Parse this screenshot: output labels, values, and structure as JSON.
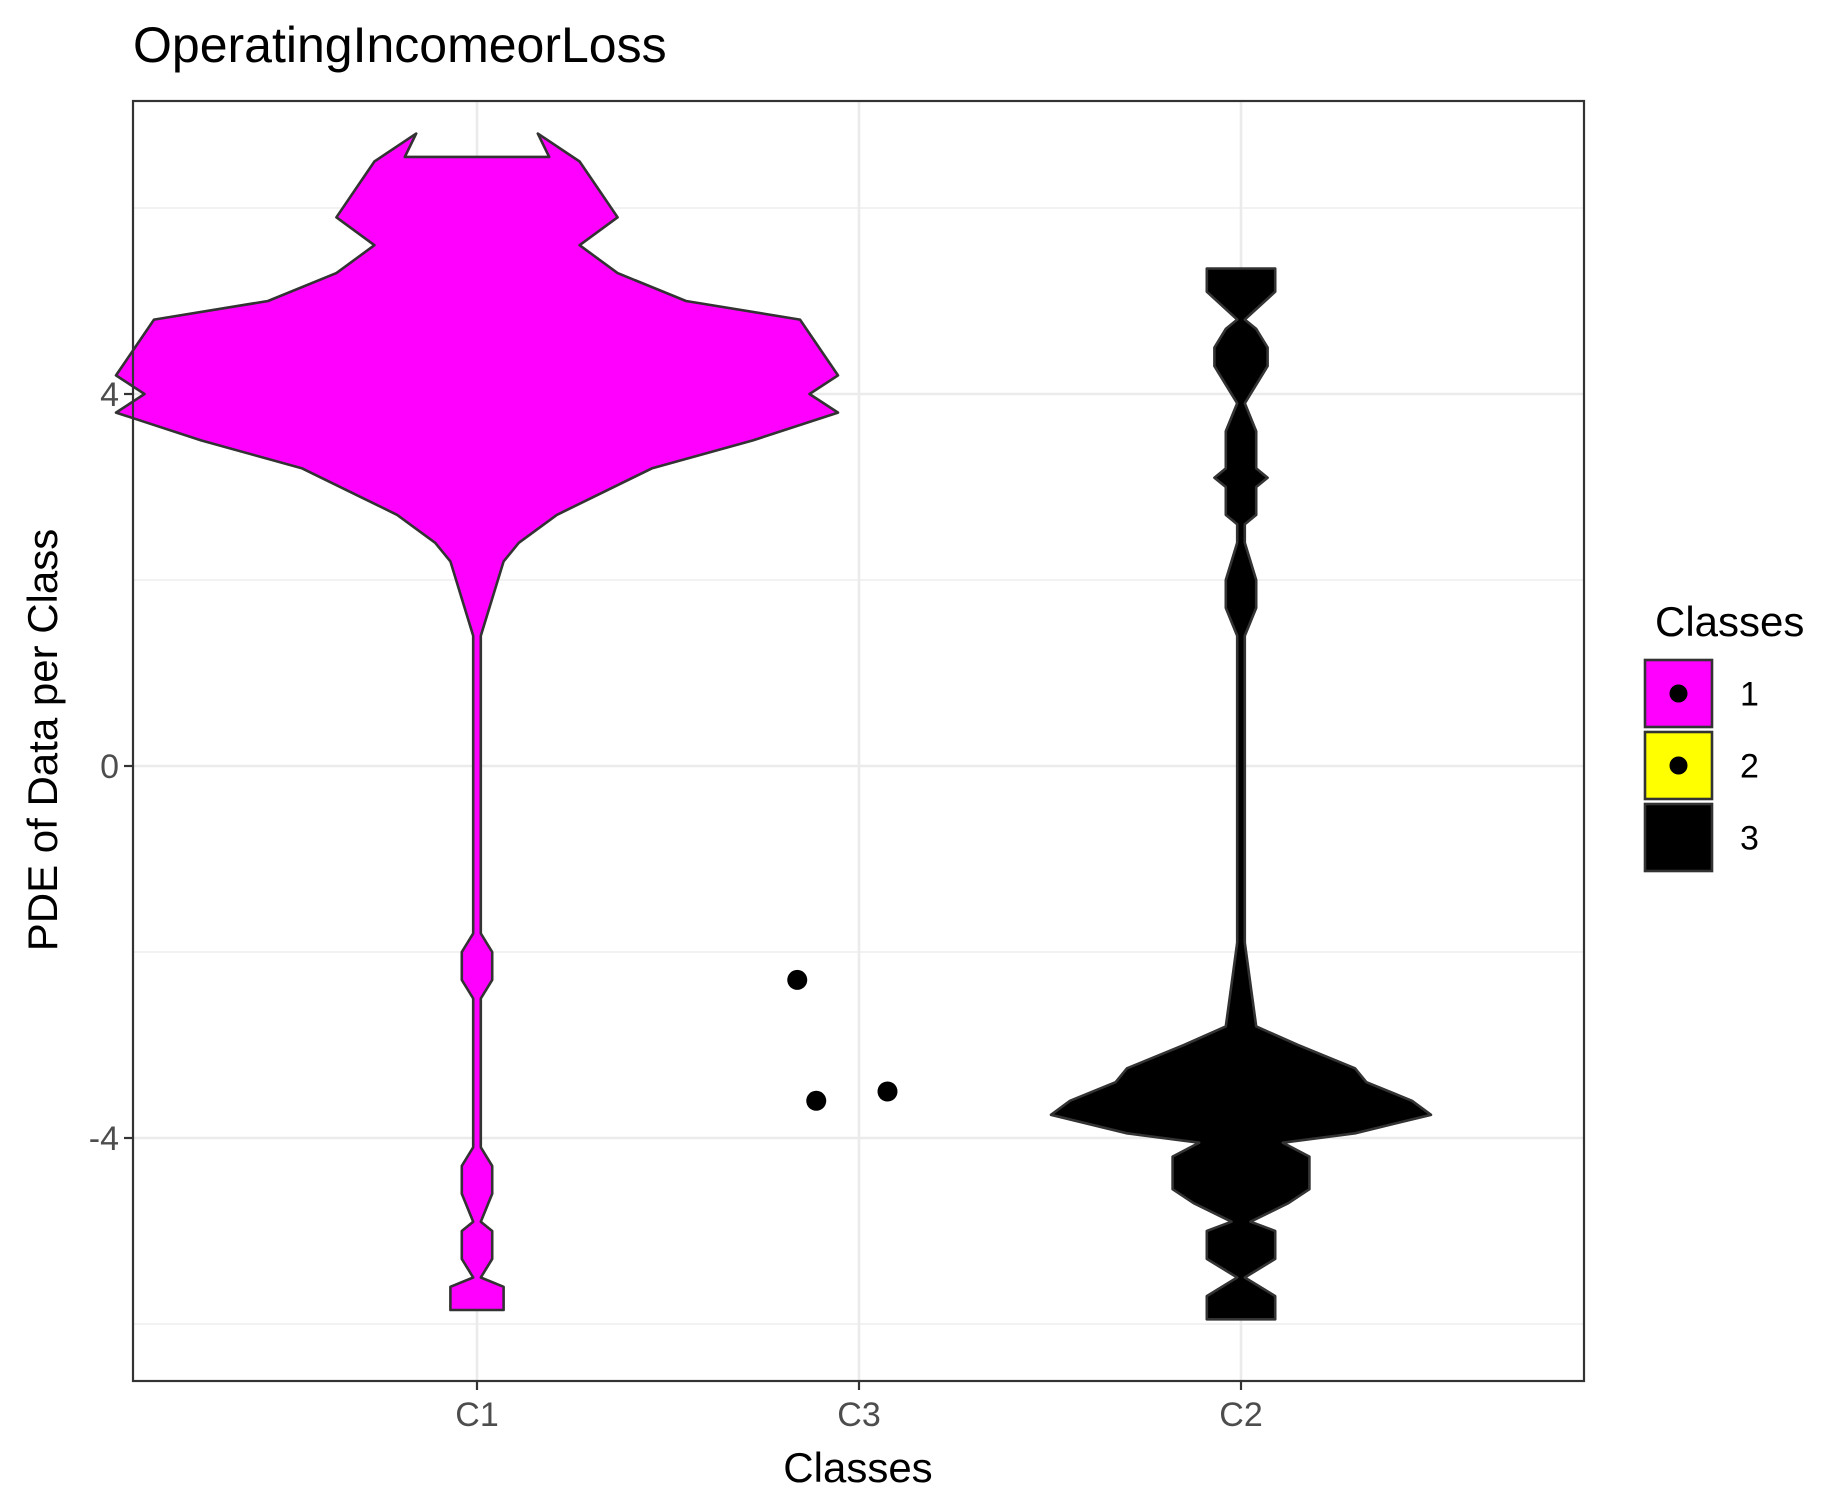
{
  "chart_data": {
    "type": "violin",
    "title": "OperatingIncomeorLoss",
    "xlabel": "Classes",
    "ylabel": "PDE of Data per Class",
    "categories": [
      "C1",
      "C3",
      "C2"
    ],
    "ylim": [
      -6.5,
      7.0
    ],
    "yticks": [
      4,
      0,
      -4
    ],
    "ytick_labels": [
      "4",
      "0",
      "-4"
    ],
    "grid": true,
    "legend": {
      "title": "Classes",
      "position": "right",
      "entries": [
        {
          "label": "1",
          "color": "#ff00ff"
        },
        {
          "label": "2",
          "color": "#ffff00"
        },
        {
          "label": "3",
          "color": "#000000"
        }
      ]
    },
    "series": [
      {
        "name": "C1",
        "class": "1",
        "color": "#ff00ff",
        "density": [
          {
            "y": -5.85,
            "w": 0.14
          },
          {
            "y": -5.6,
            "w": 0.14
          },
          {
            "y": -5.5,
            "w": 0.02
          },
          {
            "y": -5.3,
            "w": 0.08
          },
          {
            "y": -5.0,
            "w": 0.08
          },
          {
            "y": -4.9,
            "w": 0.02
          },
          {
            "y": -4.6,
            "w": 0.08
          },
          {
            "y": -4.3,
            "w": 0.08
          },
          {
            "y": -4.1,
            "w": 0.02
          },
          {
            "y": -2.5,
            "w": 0.02
          },
          {
            "y": -2.3,
            "w": 0.08
          },
          {
            "y": -2.0,
            "w": 0.08
          },
          {
            "y": -1.8,
            "w": 0.02
          },
          {
            "y": 1.4,
            "w": 0.02
          },
          {
            "y": 1.8,
            "w": 0.08
          },
          {
            "y": 2.2,
            "w": 0.14
          },
          {
            "y": 2.4,
            "w": 0.22
          },
          {
            "y": 2.7,
            "w": 0.42
          },
          {
            "y": 2.9,
            "w": 0.62
          },
          {
            "y": 3.2,
            "w": 0.92
          },
          {
            "y": 3.5,
            "w": 1.45
          },
          {
            "y": 3.8,
            "w": 1.9
          },
          {
            "y": 4.0,
            "w": 1.75
          },
          {
            "y": 4.2,
            "w": 1.9
          },
          {
            "y": 4.5,
            "w": 1.8
          },
          {
            "y": 4.8,
            "w": 1.7
          },
          {
            "y": 5.0,
            "w": 1.1
          },
          {
            "y": 5.3,
            "w": 0.74
          },
          {
            "y": 5.6,
            "w": 0.54
          },
          {
            "y": 5.9,
            "w": 0.74
          },
          {
            "y": 6.2,
            "w": 0.64
          },
          {
            "y": 6.5,
            "w": 0.54
          },
          {
            "y": 6.8,
            "w": 0.32
          },
          {
            "y": 6.55,
            "w": 0.38
          }
        ]
      },
      {
        "name": "C2",
        "class": "3",
        "color": "#000000",
        "density": [
          {
            "y": -5.95,
            "w": 0.18
          },
          {
            "y": -5.7,
            "w": 0.18
          },
          {
            "y": -5.5,
            "w": 0.02
          },
          {
            "y": -5.3,
            "w": 0.18
          },
          {
            "y": -5.0,
            "w": 0.18
          },
          {
            "y": -4.9,
            "w": 0.05
          },
          {
            "y": -4.7,
            "w": 0.25
          },
          {
            "y": -4.55,
            "w": 0.36
          },
          {
            "y": -4.2,
            "w": 0.36
          },
          {
            "y": -4.05,
            "w": 0.22
          },
          {
            "y": -3.95,
            "w": 0.6
          },
          {
            "y": -3.75,
            "w": 1.0
          },
          {
            "y": -3.6,
            "w": 0.9
          },
          {
            "y": -3.4,
            "w": 0.66
          },
          {
            "y": -3.25,
            "w": 0.6
          },
          {
            "y": -3.0,
            "w": 0.3
          },
          {
            "y": -2.8,
            "w": 0.08
          },
          {
            "y": -2.5,
            "w": 0.06
          },
          {
            "y": -1.9,
            "w": 0.02
          },
          {
            "y": 1.4,
            "w": 0.02
          },
          {
            "y": 1.7,
            "w": 0.08
          },
          {
            "y": 2.0,
            "w": 0.08
          },
          {
            "y": 2.4,
            "w": 0.02
          },
          {
            "y": 2.6,
            "w": 0.02
          },
          {
            "y": 2.7,
            "w": 0.08
          },
          {
            "y": 3.0,
            "w": 0.08
          },
          {
            "y": 3.1,
            "w": 0.14
          },
          {
            "y": 3.2,
            "w": 0.08
          },
          {
            "y": 3.6,
            "w": 0.08
          },
          {
            "y": 3.9,
            "w": 0.02
          },
          {
            "y": 4.1,
            "w": 0.08
          },
          {
            "y": 4.3,
            "w": 0.14
          },
          {
            "y": 4.5,
            "w": 0.14
          },
          {
            "y": 4.7,
            "w": 0.08
          },
          {
            "y": 4.8,
            "w": 0.02
          },
          {
            "y": 5.1,
            "w": 0.18
          },
          {
            "y": 5.35,
            "w": 0.18
          }
        ]
      },
      {
        "name": "C3",
        "class": "2",
        "points": [
          {
            "dx": -0.13,
            "y": -2.3
          },
          {
            "dx": -0.09,
            "y": -3.6
          },
          {
            "dx": 0.06,
            "y": -3.5
          }
        ]
      }
    ]
  }
}
